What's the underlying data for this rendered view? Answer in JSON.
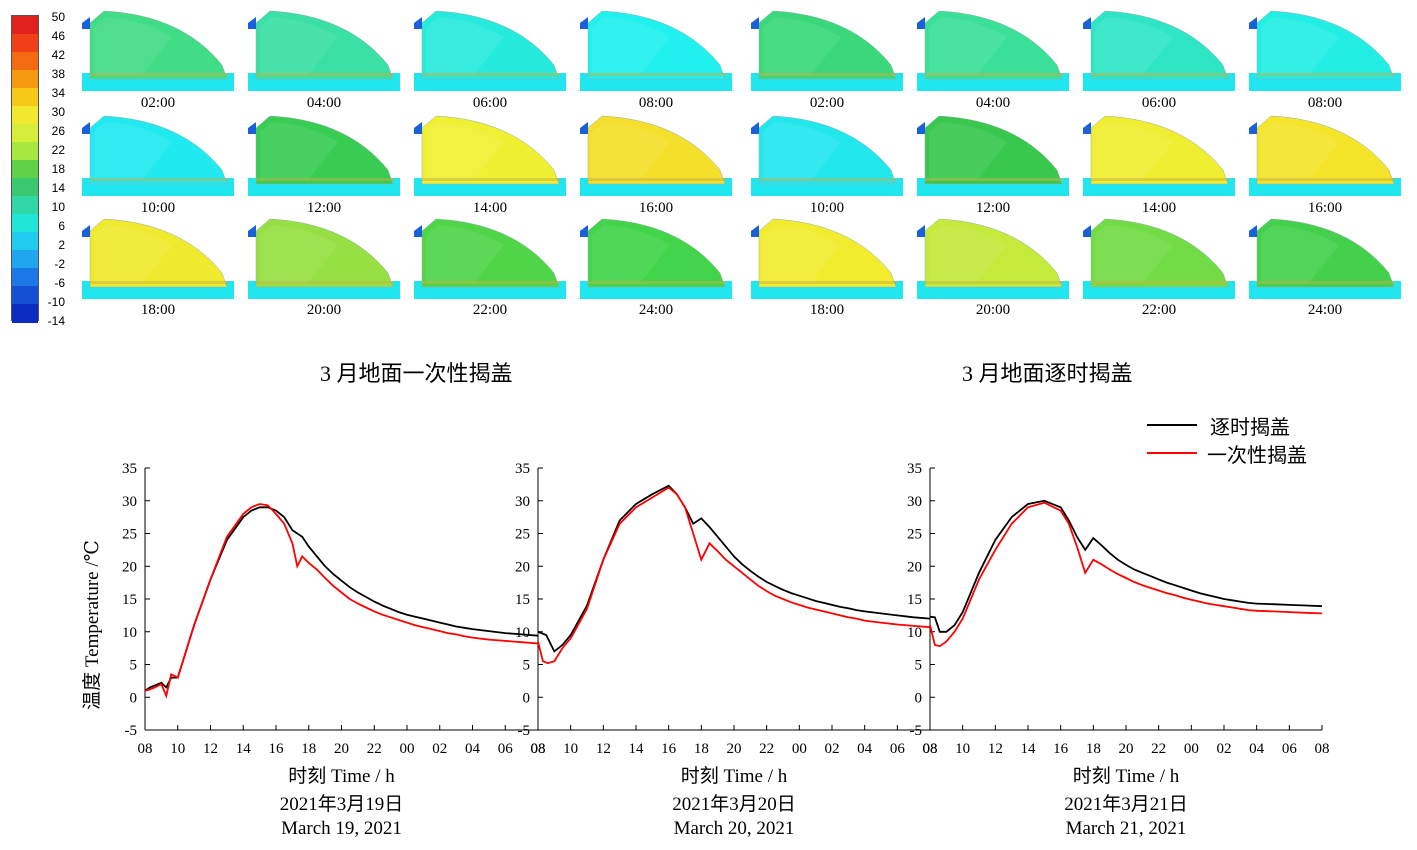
{
  "colorbar": {
    "labels": [
      "50",
      "46",
      "42",
      "38",
      "34",
      "30",
      "26",
      "22",
      "18",
      "14",
      "10",
      "6",
      "2",
      "-2",
      "-6",
      "-10",
      "-14"
    ],
    "colors": [
      "#e0201c",
      "#f04018",
      "#f46a10",
      "#f59a10",
      "#f6c818",
      "#f2e830",
      "#d6ee3a",
      "#a8e640",
      "#60d048",
      "#38c870",
      "#30d8a8",
      "#20e6d8",
      "#20ccee",
      "#20a6ee",
      "#1c78e6",
      "#1450d4",
      "#0a2cc0"
    ]
  },
  "thumbnails": {
    "times": [
      [
        "02:00",
        "04:00",
        "06:00",
        "08:00"
      ],
      [
        "10:00",
        "12:00",
        "14:00",
        "16:00"
      ],
      [
        "18:00",
        "20:00",
        "22:00",
        "24:00"
      ]
    ],
    "left_colors": [
      [
        "#40dc86",
        "#3ae0a6",
        "#26eadc",
        "#20f0ee"
      ],
      [
        "#20eaf0",
        "#38cc52",
        "#f0f032",
        "#f4e02a"
      ],
      [
        "#f0ea2e",
        "#96e044",
        "#50d448",
        "#42d44a"
      ]
    ],
    "right_colors": [
      [
        "#3ad87a",
        "#3ae098",
        "#2ee6c4",
        "#22eee4"
      ],
      [
        "#22e8ee",
        "#38c84e",
        "#f0ee30",
        "#f4e42a"
      ],
      [
        "#f2ec2e",
        "#c4ea3c",
        "#72dc46",
        "#44d04c"
      ]
    ],
    "base_color": "#20e6f0"
  },
  "captions": {
    "left": "3 月地面一次性揭盖",
    "right": "3 月地面逐时揭盖"
  },
  "legend": {
    "items": [
      {
        "label": "逐时揭盖",
        "color": "#000000"
      },
      {
        "label": "一次性揭盖",
        "color": "#ff0000"
      }
    ]
  },
  "chart_data": {
    "type": "line",
    "ylabel": "温度  Temperature  /℃",
    "xlabel": "时刻 Time / h",
    "ylim": [
      -5,
      35
    ],
    "yticks": [
      -5,
      0,
      5,
      10,
      15,
      20,
      25,
      30,
      35
    ],
    "xtick_labels": [
      "08",
      "10",
      "12",
      "14",
      "16",
      "18",
      "20",
      "22",
      "00",
      "02",
      "04",
      "06",
      "08"
    ],
    "x_unit": "hours since 08:00",
    "panels": [
      {
        "date_cn": "2021年3月19日",
        "date_en": "March 19, 2021",
        "series": [
          {
            "name": "逐时揭盖",
            "x": [
              0,
              0.3,
              0.6,
              1.0,
              1.3,
              1.6,
              2,
              3,
              4,
              5,
              6,
              6.5,
              7,
              7.5,
              8,
              8.5,
              9,
              9.3,
              9.6,
              10,
              10.5,
              11,
              11.5,
              12,
              12.5,
              13,
              13.5,
              14,
              14.5,
              15,
              15.5,
              16,
              16.5,
              17,
              17.5,
              18,
              18.5,
              19,
              19.5,
              20,
              21,
              22,
              23,
              24
            ],
            "y": [
              1,
              1.5,
              1.8,
              2.2,
              1.5,
              3,
              3,
              11,
              18,
              24,
              27.5,
              28.5,
              29,
              29,
              28.5,
              27.5,
              25.5,
              25,
              24.5,
              23,
              21.5,
              20,
              18.8,
              17.8,
              16.8,
              16,
              15.3,
              14.6,
              14,
              13.5,
              13,
              12.6,
              12.3,
              12,
              11.7,
              11.4,
              11.1,
              10.8,
              10.6,
              10.4,
              10.1,
              9.8,
              9.6,
              9.4
            ]
          },
          {
            "name": "一次性揭盖",
            "x": [
              0,
              0.3,
              0.6,
              1.0,
              1.3,
              1.6,
              2,
              3,
              4,
              5,
              6,
              6.5,
              7,
              7.5,
              8,
              8.5,
              9,
              9.3,
              9.6,
              10,
              10.5,
              11,
              11.5,
              12,
              12.5,
              13,
              13.5,
              14,
              14.5,
              15,
              15.5,
              16,
              16.5,
              17,
              17.5,
              18,
              18.5,
              19,
              19.5,
              20,
              21,
              22,
              23,
              24
            ],
            "y": [
              1,
              1.2,
              1.5,
              2,
              0.2,
              3.5,
              3,
              11,
              18,
              24.5,
              28,
              29,
              29.5,
              29.3,
              28,
              26.5,
              23.5,
              20,
              21.5,
              20.5,
              19.5,
              18.2,
              17,
              16,
              15,
              14.3,
              13.7,
              13.1,
              12.6,
              12.2,
              11.8,
              11.4,
              11,
              10.7,
              10.4,
              10.1,
              9.8,
              9.6,
              9.3,
              9.1,
              8.8,
              8.6,
              8.4,
              8.2
            ]
          }
        ]
      },
      {
        "date_cn": "2021年3月20日",
        "date_en": "March 20, 2021",
        "series": [
          {
            "name": "逐时揭盖",
            "x": [
              0,
              0.5,
              1,
              1.5,
              2,
              3,
              4,
              5,
              6,
              7,
              8,
              8.5,
              9,
              9.5,
              10,
              10.5,
              11,
              11.5,
              12,
              12.5,
              13,
              13.5,
              14,
              14.5,
              15,
              15.5,
              16,
              16.5,
              17,
              17.5,
              18,
              18.5,
              19,
              19.5,
              20,
              21,
              22,
              23,
              24
            ],
            "y": [
              10,
              9.5,
              7,
              8,
              9.5,
              14,
              21,
              27,
              29.5,
              31,
              32.3,
              31,
              29,
              26.5,
              27.3,
              26,
              24.5,
              23,
              21.5,
              20.3,
              19.3,
              18.4,
              17.6,
              17,
              16.4,
              15.9,
              15.5,
              15.1,
              14.7,
              14.4,
              14.1,
              13.8,
              13.6,
              13.3,
              13.1,
              12.8,
              12.5,
              12.2,
              12
            ]
          },
          {
            "name": "一次性揭盖",
            "x": [
              0,
              0.3,
              0.6,
              1,
              1.5,
              2,
              3,
              4,
              5,
              6,
              7,
              8,
              8.5,
              9,
              9.5,
              10,
              10.5,
              11,
              11.5,
              12,
              12.5,
              13,
              13.5,
              14,
              14.5,
              15,
              15.5,
              16,
              16.5,
              17,
              17.5,
              18,
              18.5,
              19,
              19.5,
              20,
              21,
              22,
              23,
              24
            ],
            "y": [
              8.5,
              5.5,
              5.2,
              5.5,
              7.5,
              9,
              13.5,
              21,
              26.5,
              29,
              30.5,
              32,
              31,
              29,
              25,
              21,
              23.5,
              22.3,
              21,
              20,
              19,
              18,
              17,
              16.2,
              15.5,
              15,
              14.5,
              14.1,
              13.7,
              13.4,
              13.1,
              12.8,
              12.5,
              12.2,
              12,
              11.7,
              11.4,
              11.1,
              10.9,
              10.7
            ]
          }
        ]
      },
      {
        "date_cn": "2021年3月21日",
        "date_en": "March 21, 2021",
        "series": [
          {
            "name": "逐时揭盖",
            "x": [
              0,
              0.3,
              0.6,
              1,
              1.5,
              2,
              3,
              4,
              5,
              6,
              7,
              8,
              8.5,
              9,
              9.5,
              10,
              10.5,
              11,
              11.5,
              12,
              12.5,
              13,
              13.5,
              14,
              14.5,
              15,
              15.5,
              16,
              16.5,
              17,
              17.5,
              18,
              18.5,
              19,
              19.5,
              20,
              21,
              22,
              23,
              24
            ],
            "y": [
              12.3,
              12.2,
              10,
              10,
              11,
              13,
              19,
              24,
              27.5,
              29.5,
              30,
              29,
              27,
              24.5,
              22.5,
              24.3,
              23.2,
              22,
              21,
              20.2,
              19.5,
              19,
              18.5,
              18,
              17.5,
              17.1,
              16.7,
              16.3,
              15.9,
              15.6,
              15.3,
              15,
              14.8,
              14.6,
              14.4,
              14.3,
              14.2,
              14.1,
              14,
              13.9
            ]
          },
          {
            "name": "一次性揭盖",
            "x": [
              0,
              0.3,
              0.6,
              1,
              1.5,
              2,
              3,
              4,
              5,
              6,
              7,
              8,
              8.5,
              9,
              9.5,
              10,
              10.5,
              11,
              11.5,
              12,
              12.5,
              13,
              13.5,
              14,
              14.5,
              15,
              15.5,
              16,
              16.5,
              17,
              17.5,
              18,
              18.5,
              19,
              19.5,
              20,
              21,
              22,
              23,
              24
            ],
            "y": [
              11,
              8,
              7.8,
              8.5,
              10,
              12,
              18,
              22.5,
              26.5,
              29,
              29.7,
              28.5,
              26.5,
              23,
              19,
              21,
              20.3,
              19.5,
              18.8,
              18.2,
              17.6,
              17.1,
              16.7,
              16.3,
              15.9,
              15.6,
              15.2,
              14.9,
              14.6,
              14.3,
              14.1,
              13.9,
              13.7,
              13.5,
              13.3,
              13.2,
              13.1,
              13,
              12.9,
              12.8
            ]
          }
        ]
      }
    ]
  }
}
